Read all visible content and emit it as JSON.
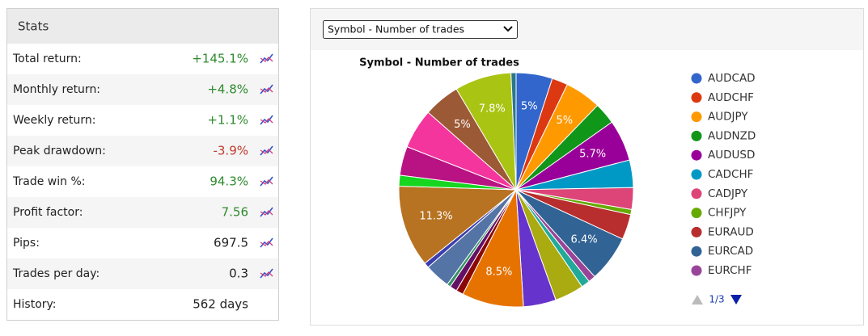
{
  "stats": {
    "title": "Stats",
    "rows": [
      {
        "label": "Total return:",
        "value": "+145.1%",
        "color": "#2e8b2e"
      },
      {
        "label": "Monthly return:",
        "value": "+4.8%",
        "color": "#2e8b2e"
      },
      {
        "label": "Weekly return:",
        "value": "+1.1%",
        "color": "#2e8b2e"
      },
      {
        "label": "Peak drawdown:",
        "value": "-3.9%",
        "color": "#c0392b"
      },
      {
        "label": "Trade win %:",
        "value": "94.3%",
        "color": "#2e8b2e"
      },
      {
        "label": "Profit factor:",
        "value": "7.56",
        "color": "#2e8b2e"
      },
      {
        "label": "Pips:",
        "value": "697.5",
        "color": "#222222"
      },
      {
        "label": "Trades per day:",
        "value": "0.3",
        "color": "#222222"
      },
      {
        "label": "History:",
        "value": "562 days",
        "color": "#222222"
      }
    ]
  },
  "chart_selector": "Symbol - Number of trades",
  "legend_page": "1/3",
  "chart_data": {
    "type": "pie",
    "title": "Symbol - Number of trades",
    "categories": [
      "AUDCAD",
      "AUDCHF",
      "AUDJPY",
      "AUDNZD",
      "AUDUSD",
      "CADCHF",
      "CADJPY",
      "CHFJPY",
      "EURAUD",
      "EURCAD",
      "EURCHF",
      null,
      null,
      null,
      null,
      null,
      null,
      null,
      null,
      null,
      null,
      null,
      null,
      null,
      null,
      null,
      null
    ],
    "values": [
      5,
      2.2,
      5,
      3,
      5.7,
      3.8,
      3,
      0.7,
      3.5,
      6.4,
      1,
      1.2,
      4,
      4.5,
      8.5,
      1,
      1,
      0.5,
      3.5,
      0.7,
      11.3,
      1.5,
      4,
      5.5,
      5,
      7.8,
      0.7
    ],
    "value_labels": [
      "5%",
      null,
      "5%",
      null,
      "5.7%",
      null,
      null,
      null,
      null,
      "6.4%",
      null,
      null,
      null,
      null,
      "8.5%",
      null,
      null,
      null,
      null,
      null,
      "11.3%",
      null,
      null,
      null,
      "5%",
      "7.8%",
      null
    ],
    "colors": [
      "#3366cc",
      "#dc3912",
      "#ff9900",
      "#109618",
      "#990099",
      "#0099c6",
      "#dd4477",
      "#66aa00",
      "#b82e2e",
      "#316395",
      "#994499",
      "#22aa99",
      "#aaaa11",
      "#6633cc",
      "#e67300",
      "#8b0707",
      "#651067",
      "#329262",
      "#5574a6",
      "#3b3eac",
      "#b77322",
      "#16d620",
      "#b91383",
      "#f4359e",
      "#9c5935",
      "#a9c413",
      "#2a778d"
    ]
  }
}
